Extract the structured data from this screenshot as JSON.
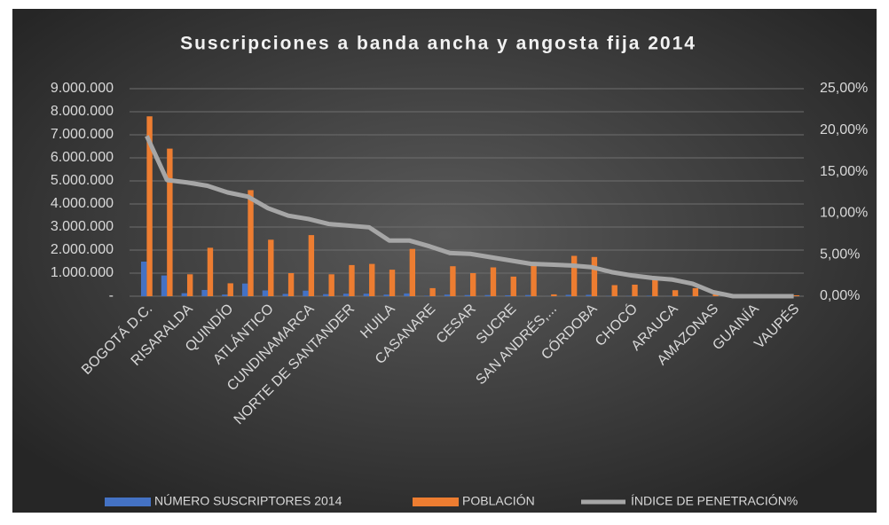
{
  "chart_data": {
    "type": "bar_line",
    "title": "Suscripciones a banda ancha y angosta fija  2014",
    "categories": [
      "BOGOTÁ D.C.",
      null,
      "RISARALDA",
      null,
      "QUINDÍO",
      null,
      "ATLÁNTICO",
      null,
      "CUNDINAMARCA",
      null,
      "NORTE DE SANTANDER",
      null,
      "HUILA",
      null,
      "CASANARE",
      null,
      "CESAR",
      null,
      "SUCRE",
      null,
      "SAN ANDRÉS,...",
      null,
      "CÓRDOBA",
      null,
      "CHOCÓ",
      null,
      "ARAUCA",
      null,
      "AMAZONAS",
      null,
      "GUAINÍA",
      null,
      "VAUPÉS"
    ],
    "series": [
      {
        "name": "NÚMERO SUSCRIPTORES  2014",
        "color": "#4472c4",
        "type": "bar",
        "values": [
          1500000,
          900000,
          130000,
          270000,
          70000,
          550000,
          250000,
          100000,
          240000,
          90000,
          110000,
          110000,
          70000,
          120000,
          20000,
          70000,
          50000,
          50000,
          40000,
          50000,
          3000,
          60000,
          60000,
          10000,
          10000,
          20000,
          6000,
          7000,
          1000,
          100,
          100,
          100,
          100
        ]
      },
      {
        "name": "POBLACIÓN",
        "color": "#ed7d31",
        "type": "bar",
        "values": [
          7800000,
          6400000,
          950000,
          2100000,
          560000,
          4600000,
          2450000,
          1000000,
          2650000,
          950000,
          1350000,
          1400000,
          1150000,
          2050000,
          350000,
          1300000,
          1000000,
          1250000,
          850000,
          1400000,
          80000,
          1750000,
          1700000,
          480000,
          500000,
          850000,
          260000,
          350000,
          80000,
          70000,
          40000,
          40000,
          40000
        ]
      },
      {
        "name": "ÍNDICE DE PENETRACIÓN%",
        "color": "#a6a6a6",
        "type": "line",
        "axis": "y2",
        "values": [
          19.3,
          14.0,
          13.7,
          13.3,
          12.5,
          12.0,
          10.6,
          9.7,
          9.3,
          8.7,
          8.5,
          8.3,
          6.7,
          6.7,
          6.0,
          5.2,
          5.1,
          4.7,
          4.3,
          3.9,
          3.8,
          3.7,
          3.5,
          2.9,
          2.5,
          2.2,
          2.0,
          1.5,
          0.5,
          0,
          0,
          0,
          0
        ]
      }
    ],
    "ylim": [
      0,
      9000000
    ],
    "yticks": [
      {
        "value": 0,
        "label": "-"
      },
      {
        "value": 1000000,
        "label": "1.000.000"
      },
      {
        "value": 2000000,
        "label": "2.000.000"
      },
      {
        "value": 3000000,
        "label": "3.000.000"
      },
      {
        "value": 4000000,
        "label": "4.000.000"
      },
      {
        "value": 5000000,
        "label": "5.000.000"
      },
      {
        "value": 6000000,
        "label": "6.000.000"
      },
      {
        "value": 7000000,
        "label": "7.000.000"
      },
      {
        "value": 8000000,
        "label": "8.000.000"
      },
      {
        "value": 9000000,
        "label": "9.000.000"
      }
    ],
    "y2lim": [
      0,
      25
    ],
    "y2ticks": [
      {
        "value": 0,
        "label": "0,00%"
      },
      {
        "value": 5,
        "label": "5,00%"
      },
      {
        "value": 10,
        "label": "10,00%"
      },
      {
        "value": 15,
        "label": "15,00%"
      },
      {
        "value": 20,
        "label": "20,00%"
      },
      {
        "value": 25,
        "label": "25,00%"
      }
    ],
    "grid": true,
    "legend": "bottom"
  }
}
